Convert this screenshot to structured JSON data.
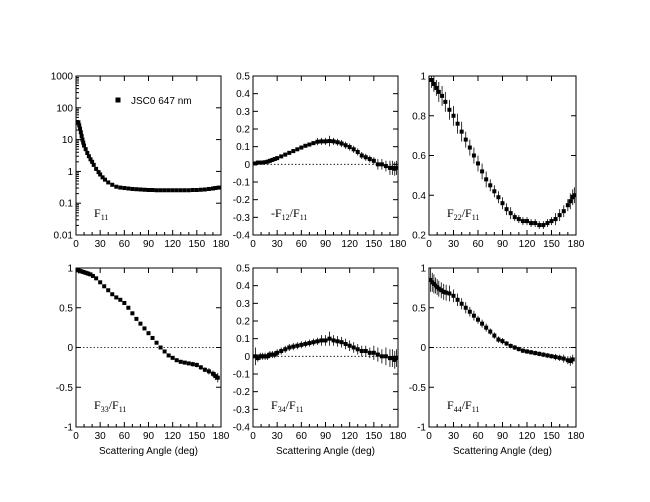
{
  "chart_data": [
    {
      "id": "f11",
      "type": "scatter",
      "yscale": "log",
      "label_main": "F",
      "label_sub1": "11",
      "label_mid": "",
      "label_sub2": "",
      "label_pos": "bottom-left",
      "xlim": [
        0,
        180
      ],
      "ylim": [
        0.01,
        1000
      ],
      "xticks": [
        0,
        30,
        60,
        90,
        120,
        150,
        180
      ],
      "xtick_labels": [
        "0",
        "30",
        "60",
        "90",
        "120",
        "150",
        "180"
      ],
      "yticks": [
        0.01,
        0.1,
        1,
        10,
        100,
        1000
      ],
      "ytick_labels": [
        "0.01",
        "0.1",
        "1",
        "10",
        "100",
        "1000"
      ],
      "xlabel": "",
      "zero_line": false,
      "legend": {
        "marker": "square",
        "text": "JSC0 647 nm",
        "position": "top-center"
      },
      "x": [
        3,
        4,
        5,
        6,
        7,
        8,
        9,
        10,
        12,
        14,
        16,
        18,
        20,
        22,
        25,
        28,
        30,
        33,
        36,
        40,
        45,
        50,
        55,
        60,
        65,
        70,
        75,
        80,
        85,
        90,
        95,
        100,
        105,
        110,
        115,
        120,
        125,
        130,
        135,
        140,
        145,
        150,
        155,
        160,
        165,
        170,
        173,
        177
      ],
      "y": [
        35,
        28,
        22,
        17,
        13,
        10,
        8,
        6.5,
        5,
        3.8,
        3,
        2.4,
        2,
        1.6,
        1.2,
        0.95,
        0.8,
        0.65,
        0.55,
        0.45,
        0.38,
        0.33,
        0.31,
        0.3,
        0.29,
        0.28,
        0.275,
        0.27,
        0.265,
        0.26,
        0.26,
        0.255,
        0.255,
        0.255,
        0.255,
        0.255,
        0.255,
        0.255,
        0.255,
        0.255,
        0.26,
        0.26,
        0.265,
        0.27,
        0.28,
        0.29,
        0.3,
        0.31
      ],
      "err": []
    },
    {
      "id": "f12",
      "type": "scatter",
      "yscale": "linear",
      "label_main": "-F",
      "label_sub1": "12",
      "label_mid": "/F",
      "label_sub2": "11",
      "label_pos": "bottom-left",
      "xlim": [
        0,
        180
      ],
      "ylim": [
        -0.4,
        0.5
      ],
      "xticks": [
        0,
        30,
        60,
        90,
        120,
        150,
        180
      ],
      "xtick_labels": [
        "0",
        "30",
        "60",
        "90",
        "120",
        "150",
        "180"
      ],
      "yticks": [
        -0.4,
        -0.3,
        -0.2,
        -0.1,
        0,
        0.1,
        0.2,
        0.3,
        0.4,
        0.5
      ],
      "ytick_labels": [
        "-0.4",
        "-0.3",
        "-0.2",
        "-0.1",
        "0",
        "0.1",
        "0.2",
        "0.3",
        "0.4",
        "0.5"
      ],
      "xlabel": "",
      "zero_line": true,
      "x": [
        3,
        6,
        9,
        12,
        15,
        18,
        21,
        24,
        27,
        30,
        35,
        40,
        45,
        50,
        55,
        60,
        65,
        70,
        75,
        80,
        85,
        90,
        95,
        100,
        105,
        110,
        115,
        120,
        125,
        130,
        135,
        140,
        145,
        150,
        155,
        160,
        165,
        170,
        173,
        176,
        178
      ],
      "y": [
        0.005,
        0.01,
        0.01,
        0.01,
        0.012,
        0.015,
        0.02,
        0.025,
        0.03,
        0.035,
        0.045,
        0.055,
        0.065,
        0.075,
        0.085,
        0.095,
        0.105,
        0.112,
        0.12,
        0.128,
        0.13,
        0.13,
        0.132,
        0.13,
        0.125,
        0.118,
        0.108,
        0.098,
        0.085,
        0.07,
        0.05,
        0.04,
        0.03,
        0.02,
        0.0,
        0.0,
        -0.01,
        -0.02,
        -0.02,
        -0.025,
        -0.02
      ],
      "err": [
        0.01,
        0.01,
        0.01,
        0.01,
        0.01,
        0.01,
        0.01,
        0.01,
        0.01,
        0.01,
        0.01,
        0.01,
        0.01,
        0.01,
        0.01,
        0.01,
        0.01,
        0.01,
        0.01,
        0.02,
        0.02,
        0.02,
        0.03,
        0.02,
        0.02,
        0.02,
        0.02,
        0.02,
        0.02,
        0.02,
        0.02,
        0.02,
        0.02,
        0.02,
        0.03,
        0.03,
        0.03,
        0.04,
        0.04,
        0.04,
        0.04
      ]
    },
    {
      "id": "f22",
      "type": "scatter",
      "yscale": "linear",
      "label_main": "F",
      "label_sub1": "22",
      "label_mid": "/F",
      "label_sub2": "11",
      "label_pos": "bottom-left",
      "xlim": [
        0,
        180
      ],
      "ylim": [
        0.2,
        1.0
      ],
      "xticks": [
        0,
        30,
        60,
        90,
        120,
        150,
        180
      ],
      "xtick_labels": [
        "0",
        "30",
        "60",
        "90",
        "120",
        "150",
        "180"
      ],
      "yticks": [
        0.2,
        0.4,
        0.6,
        0.8,
        1.0
      ],
      "ytick_labels": [
        "0.2",
        "0.4",
        "0.6",
        "0.8",
        "1"
      ],
      "xlabel": "",
      "zero_line": false,
      "x": [
        3,
        6,
        9,
        12,
        16,
        20,
        25,
        30,
        35,
        40,
        45,
        50,
        55,
        60,
        65,
        70,
        75,
        80,
        85,
        90,
        95,
        100,
        105,
        110,
        115,
        120,
        125,
        130,
        135,
        140,
        145,
        150,
        155,
        160,
        165,
        170,
        173,
        176,
        178
      ],
      "y": [
        0.98,
        0.96,
        0.94,
        0.92,
        0.9,
        0.87,
        0.83,
        0.8,
        0.76,
        0.72,
        0.68,
        0.64,
        0.6,
        0.56,
        0.52,
        0.48,
        0.45,
        0.42,
        0.39,
        0.36,
        0.33,
        0.31,
        0.29,
        0.28,
        0.27,
        0.27,
        0.26,
        0.26,
        0.25,
        0.25,
        0.26,
        0.27,
        0.28,
        0.3,
        0.32,
        0.35,
        0.37,
        0.39,
        0.4
      ],
      "err": [
        0.04,
        0.04,
        0.04,
        0.05,
        0.05,
        0.05,
        0.05,
        0.05,
        0.05,
        0.05,
        0.04,
        0.04,
        0.04,
        0.04,
        0.04,
        0.04,
        0.03,
        0.03,
        0.03,
        0.03,
        0.03,
        0.03,
        0.02,
        0.02,
        0.02,
        0.02,
        0.02,
        0.02,
        0.02,
        0.02,
        0.02,
        0.02,
        0.03,
        0.03,
        0.03,
        0.03,
        0.04,
        0.04,
        0.04
      ]
    },
    {
      "id": "f33",
      "type": "scatter",
      "yscale": "linear",
      "label_main": "F",
      "label_sub1": "33",
      "label_mid": "/F",
      "label_sub2": "11",
      "label_pos": "bottom-left",
      "xlim": [
        0,
        180
      ],
      "ylim": [
        -1,
        1
      ],
      "xticks": [
        0,
        30,
        60,
        90,
        120,
        150,
        180
      ],
      "xtick_labels": [
        "0",
        "30",
        "60",
        "90",
        "120",
        "150",
        "180"
      ],
      "yticks": [
        -1,
        -0.5,
        0,
        0.5,
        1
      ],
      "ytick_labels": [
        "-1",
        "-0.5",
        "0",
        "0.5",
        "1"
      ],
      "xlabel": "Scattering Angle (deg)",
      "zero_line": true,
      "x": [
        3,
        6,
        9,
        12,
        15,
        18,
        21,
        25,
        30,
        35,
        40,
        45,
        50,
        55,
        60,
        65,
        70,
        75,
        80,
        85,
        90,
        95,
        100,
        105,
        110,
        115,
        120,
        125,
        130,
        135,
        140,
        145,
        150,
        155,
        160,
        165,
        170,
        173,
        176
      ],
      "y": [
        0.97,
        0.96,
        0.95,
        0.94,
        0.93,
        0.92,
        0.9,
        0.87,
        0.82,
        0.77,
        0.72,
        0.67,
        0.63,
        0.6,
        0.56,
        0.5,
        0.43,
        0.36,
        0.3,
        0.24,
        0.18,
        0.12,
        0.06,
        0.0,
        -0.05,
        -0.1,
        -0.13,
        -0.16,
        -0.18,
        -0.19,
        -0.2,
        -0.21,
        -0.22,
        -0.25,
        -0.28,
        -0.3,
        -0.33,
        -0.36,
        -0.38
      ],
      "err": [
        0.04,
        0.03,
        0.03,
        0.03,
        0.03,
        0.02,
        0.02,
        0.02,
        0.02,
        0.02,
        0.02,
        0.02,
        0.02,
        0.02,
        0.02,
        0.02,
        0.02,
        0.02,
        0.02,
        0.02,
        0.02,
        0.02,
        0.02,
        0.02,
        0.02,
        0.02,
        0.02,
        0.02,
        0.02,
        0.02,
        0.02,
        0.03,
        0.03,
        0.03,
        0.03,
        0.04,
        0.04,
        0.05,
        0.06
      ]
    },
    {
      "id": "f34",
      "type": "scatter",
      "yscale": "linear",
      "label_main": "F",
      "label_sub1": "34",
      "label_mid": "/F",
      "label_sub2": "11",
      "label_pos": "bottom-left",
      "xlim": [
        0,
        180
      ],
      "ylim": [
        -0.4,
        0.5
      ],
      "xticks": [
        0,
        30,
        60,
        90,
        120,
        150,
        180
      ],
      "xtick_labels": [
        "0",
        "30",
        "60",
        "90",
        "120",
        "150",
        "180"
      ],
      "yticks": [
        -0.4,
        -0.3,
        -0.2,
        -0.1,
        0,
        0.1,
        0.2,
        0.3,
        0.4,
        0.5
      ],
      "ytick_labels": [
        "-0.4",
        "-0.3",
        "-0.2",
        "-0.1",
        "0",
        "0.1",
        "0.2",
        "0.3",
        "0.4",
        "0.5"
      ],
      "xlabel": "Scattering Angle (deg)",
      "zero_line": true,
      "x": [
        3,
        6,
        9,
        12,
        15,
        18,
        21,
        24,
        27,
        30,
        35,
        40,
        45,
        50,
        55,
        60,
        65,
        70,
        75,
        80,
        85,
        90,
        95,
        100,
        105,
        110,
        115,
        120,
        125,
        130,
        135,
        140,
        145,
        150,
        155,
        160,
        165,
        170,
        173,
        176,
        178
      ],
      "y": [
        0.0,
        -0.01,
        0.0,
        0.0,
        0.0,
        0.0,
        0.01,
        0.01,
        0.01,
        0.02,
        0.03,
        0.04,
        0.05,
        0.055,
        0.06,
        0.065,
        0.07,
        0.075,
        0.08,
        0.085,
        0.09,
        0.09,
        0.1,
        0.09,
        0.085,
        0.08,
        0.07,
        0.06,
        0.05,
        0.04,
        0.03,
        0.03,
        0.02,
        0.02,
        0.01,
        0.0,
        0.0,
        -0.01,
        -0.01,
        -0.02,
        -0.01
      ],
      "err": [
        0.05,
        0.02,
        0.02,
        0.02,
        0.02,
        0.02,
        0.02,
        0.02,
        0.02,
        0.02,
        0.02,
        0.02,
        0.02,
        0.02,
        0.02,
        0.02,
        0.02,
        0.02,
        0.02,
        0.02,
        0.03,
        0.03,
        0.04,
        0.03,
        0.03,
        0.03,
        0.03,
        0.03,
        0.03,
        0.03,
        0.03,
        0.03,
        0.03,
        0.04,
        0.04,
        0.04,
        0.05,
        0.05,
        0.05,
        0.05,
        0.05
      ]
    },
    {
      "id": "f44",
      "type": "scatter",
      "yscale": "linear",
      "label_main": "F",
      "label_sub1": "44",
      "label_mid": "/F",
      "label_sub2": "11",
      "label_pos": "bottom-left",
      "xlim": [
        0,
        180
      ],
      "ylim": [
        -1,
        1
      ],
      "xticks": [
        0,
        30,
        60,
        90,
        120,
        150,
        180
      ],
      "xtick_labels": [
        "0",
        "30",
        "60",
        "90",
        "120",
        "150",
        "180"
      ],
      "yticks": [
        -1,
        -0.5,
        0,
        0.5,
        1
      ],
      "ytick_labels": [
        "-1",
        "-0.5",
        "0",
        "0.5",
        "1"
      ],
      "xlabel": "Scattering Angle (deg)",
      "zero_line": true,
      "x": [
        2,
        4,
        6,
        8,
        10,
        12,
        15,
        18,
        21,
        25,
        30,
        35,
        40,
        45,
        50,
        55,
        60,
        65,
        70,
        75,
        80,
        85,
        90,
        95,
        100,
        105,
        110,
        115,
        120,
        125,
        130,
        135,
        140,
        145,
        150,
        155,
        160,
        165,
        170,
        173,
        176
      ],
      "y": [
        0.85,
        0.82,
        0.8,
        0.78,
        0.76,
        0.74,
        0.72,
        0.7,
        0.69,
        0.68,
        0.65,
        0.6,
        0.55,
        0.5,
        0.45,
        0.4,
        0.35,
        0.3,
        0.25,
        0.2,
        0.15,
        0.1,
        0.08,
        0.05,
        0.02,
        0.0,
        -0.02,
        -0.04,
        -0.05,
        -0.06,
        -0.07,
        -0.08,
        -0.09,
        -0.1,
        -0.11,
        -0.12,
        -0.13,
        -0.14,
        -0.16,
        -0.17,
        -0.15
      ],
      "err": [
        0.15,
        0.12,
        0.12,
        0.1,
        0.1,
        0.1,
        0.1,
        0.1,
        0.1,
        0.1,
        0.08,
        0.08,
        0.07,
        0.07,
        0.06,
        0.06,
        0.05,
        0.05,
        0.05,
        0.04,
        0.04,
        0.04,
        0.04,
        0.03,
        0.03,
        0.03,
        0.03,
        0.03,
        0.03,
        0.03,
        0.03,
        0.03,
        0.03,
        0.03,
        0.03,
        0.04,
        0.04,
        0.05,
        0.05,
        0.06,
        0.06
      ]
    }
  ]
}
